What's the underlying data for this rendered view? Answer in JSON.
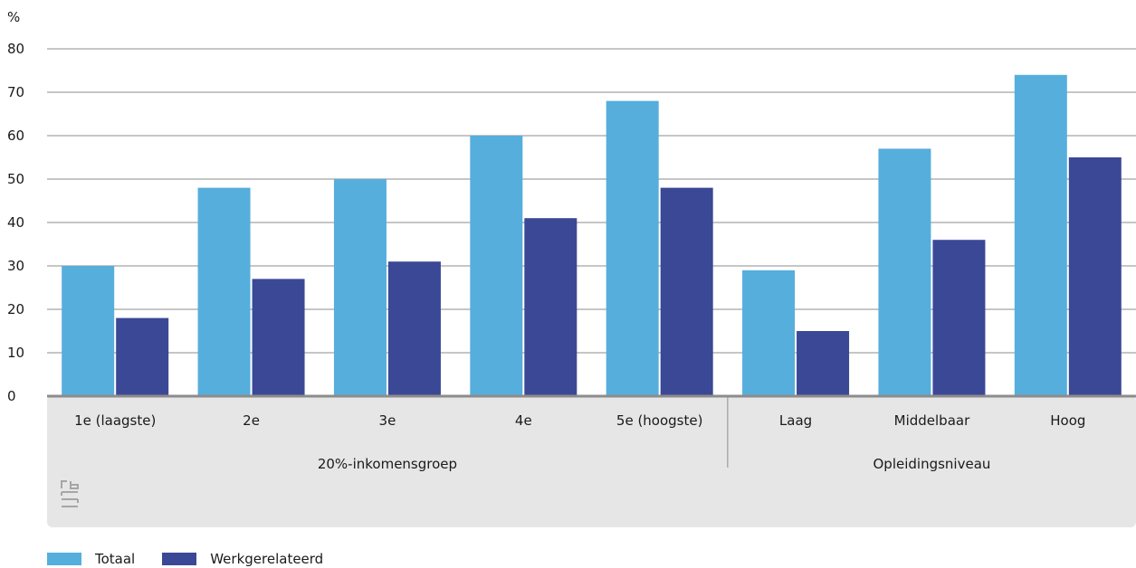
{
  "chart_data": {
    "type": "bar",
    "ylabel": "%",
    "ylim": [
      0,
      80
    ],
    "yticks": [
      0,
      10,
      20,
      30,
      40,
      50,
      60,
      70,
      80
    ],
    "grid": true,
    "legend_position": "bottom-left",
    "categories": [
      "1e (laagste)",
      "2e",
      "3e",
      "4e",
      "5e (hoogste)",
      "Laag",
      "Middelbaar",
      "Hoog"
    ],
    "groups": [
      {
        "label": "20%-inkomensgroep",
        "categories": [
          "1e (laagste)",
          "2e",
          "3e",
          "4e",
          "5e (hoogste)"
        ]
      },
      {
        "label": "Opleidingsniveau",
        "categories": [
          "Laag",
          "Middelbaar",
          "Hoog"
        ]
      }
    ],
    "series": [
      {
        "name": "Totaal",
        "color": "#56aedc",
        "values": [
          30,
          48,
          50,
          60,
          68,
          29,
          57,
          74
        ]
      },
      {
        "name": "Werkgerelateerd",
        "color": "#3b4896",
        "values": [
          18,
          27,
          31,
          41,
          48,
          15,
          36,
          55
        ]
      }
    ]
  },
  "colors": {
    "axis": "#8c8c8c",
    "grid": "#8c8c8c",
    "category_panel": "#e6e6e6",
    "logo": "#a6a6a6"
  },
  "logo_icon": "cbs-logo-icon"
}
